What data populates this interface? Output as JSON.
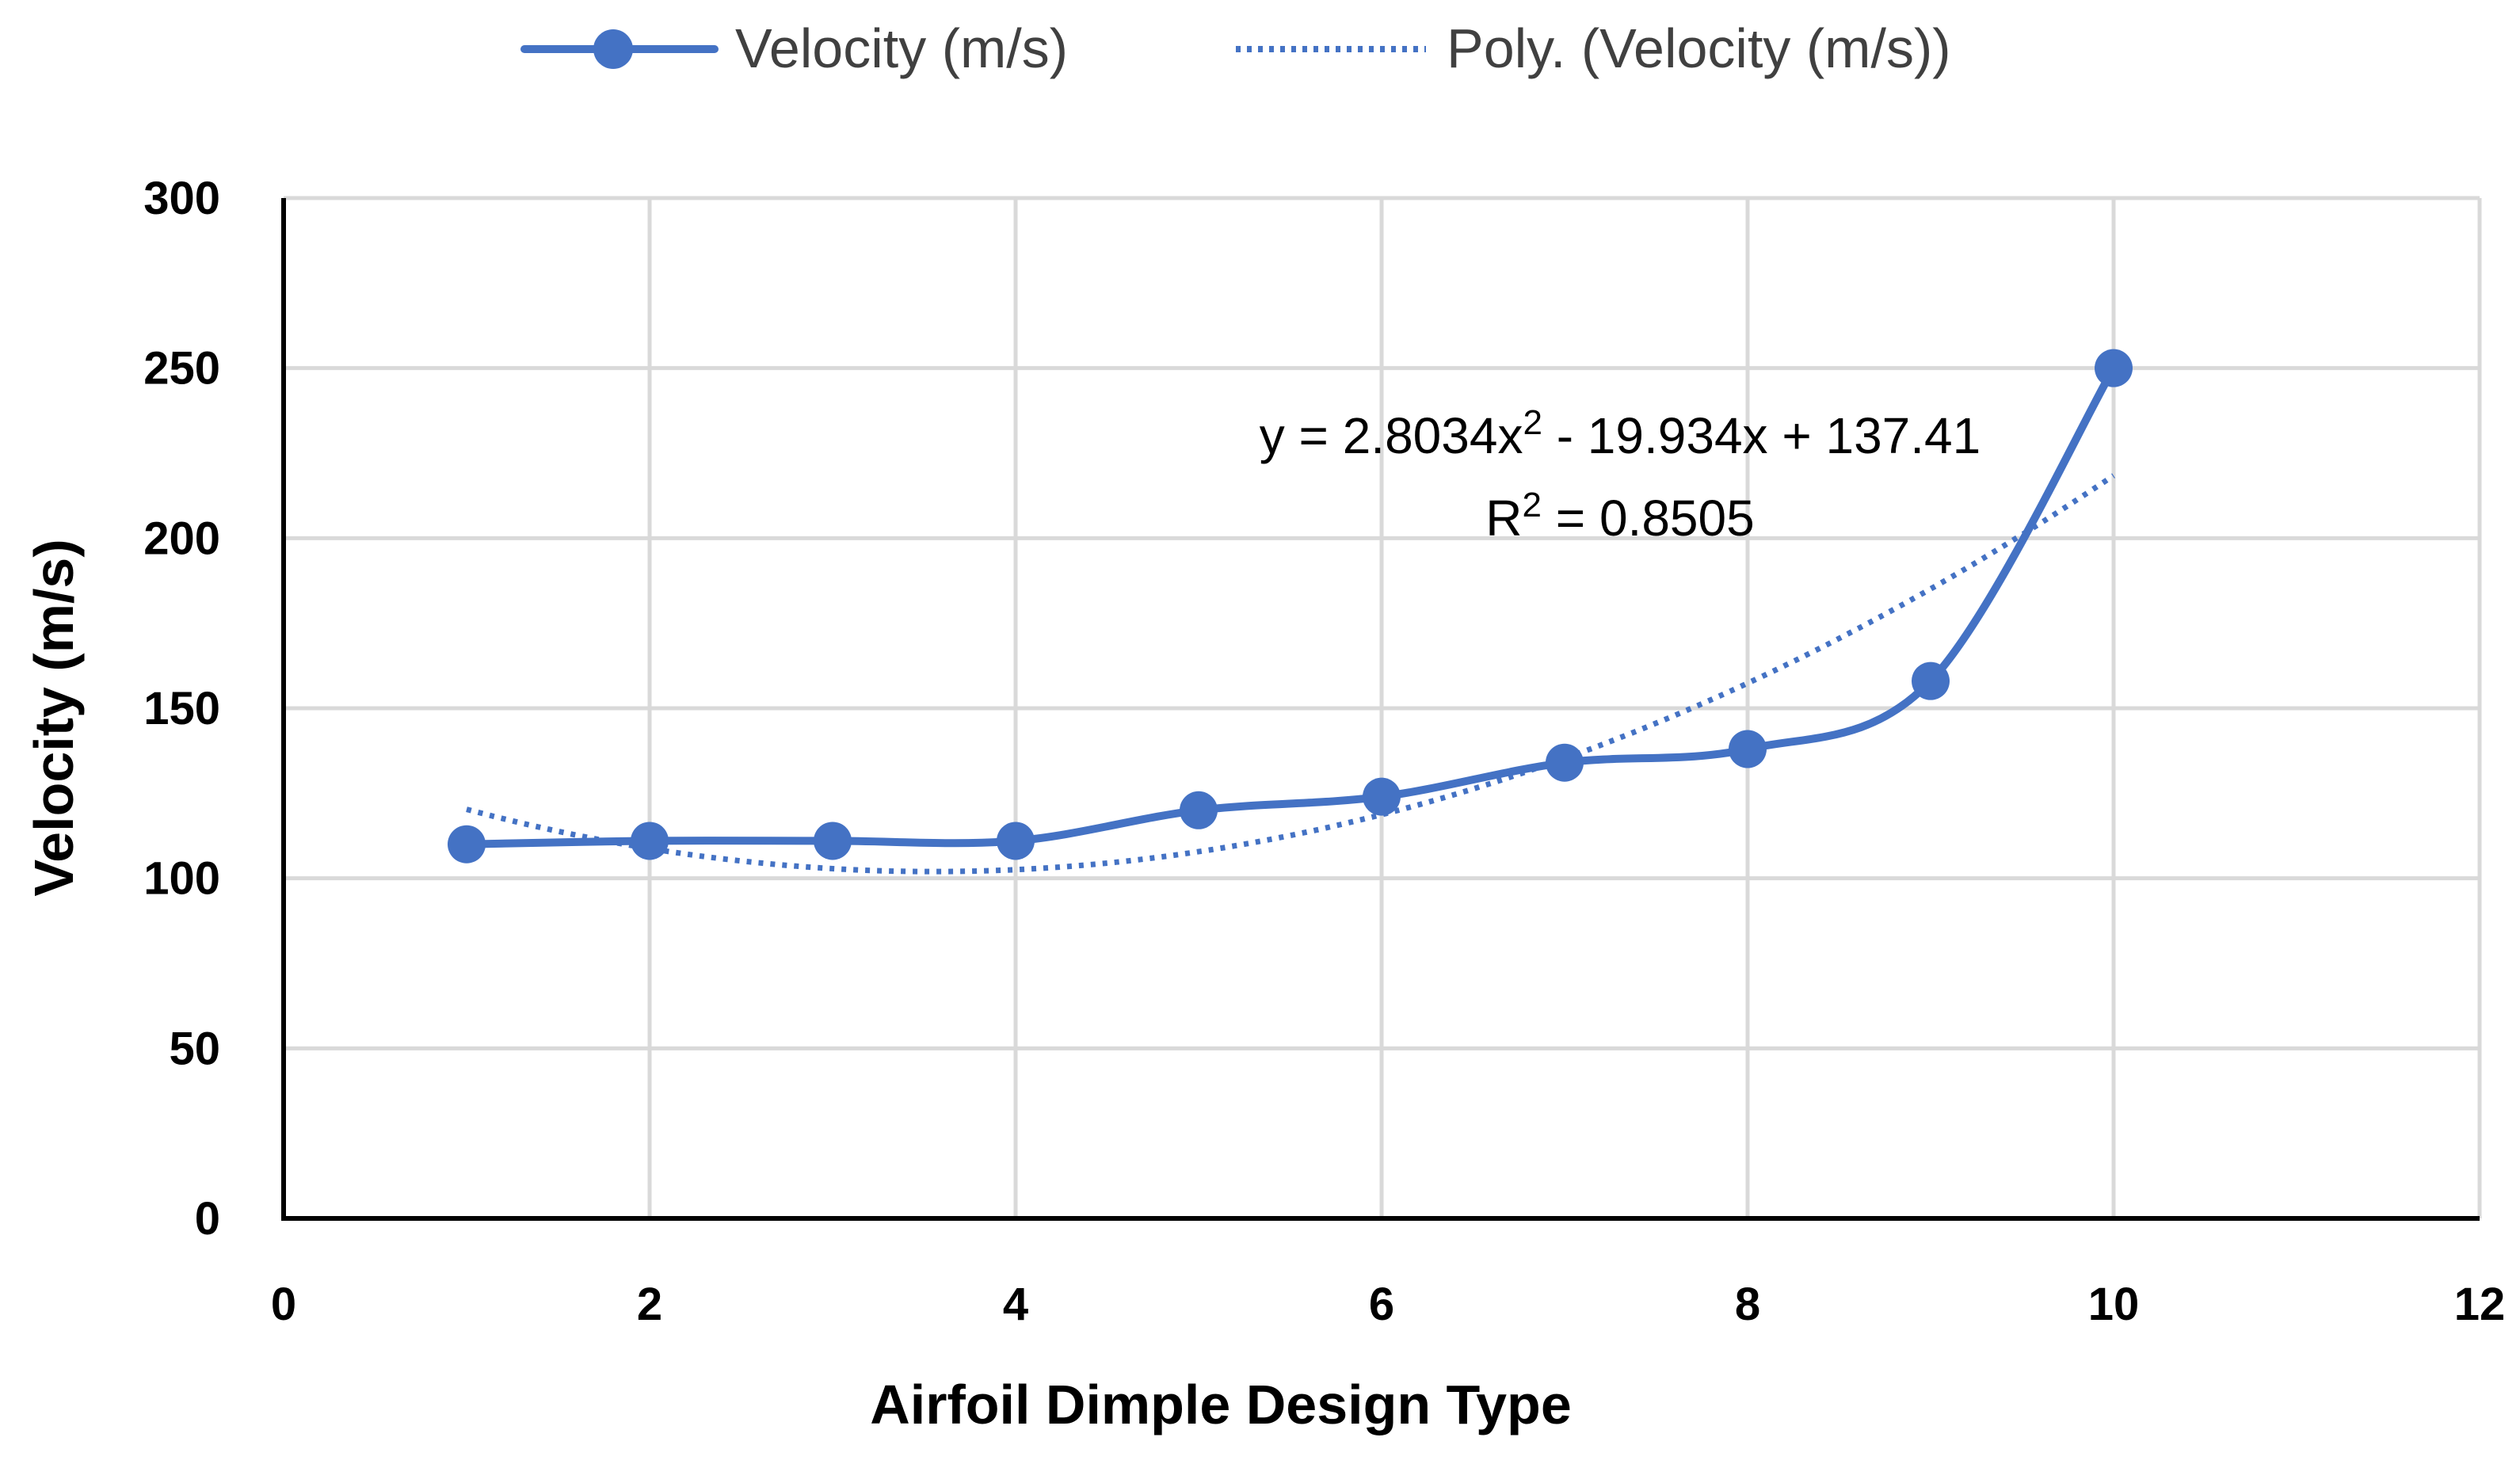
{
  "chart_data": {
    "type": "line",
    "title": "",
    "xlabel": "Airfoil Dimple Design Type",
    "ylabel": "Velocity (m/s)",
    "xlim": [
      0,
      12
    ],
    "ylim": [
      0,
      300
    ],
    "x_ticks": [
      0,
      2,
      4,
      6,
      8,
      10,
      12
    ],
    "y_ticks": [
      0,
      50,
      100,
      150,
      200,
      250,
      300
    ],
    "grid": true,
    "legend_position": "top-center",
    "series": [
      {
        "name": "Velocity (m/s)",
        "style": "solid-smooth-with-markers",
        "color": "#4472C4",
        "x": [
          1,
          2,
          3,
          4,
          5,
          6,
          7,
          8,
          9,
          10
        ],
        "values": [
          110,
          111,
          111,
          111,
          120,
          124,
          134,
          138,
          158,
          250
        ]
      },
      {
        "name": "Poly. (Velocity (m/s))",
        "style": "dotted-trendline",
        "color": "#4472C4",
        "fit": {
          "order": 2,
          "a": 2.8034,
          "b": -19.934,
          "c": 137.41
        },
        "x_range": [
          1,
          10
        ]
      }
    ],
    "annotations": {
      "equation": {
        "prefix": "y = 2.8034x",
        "sup": "2",
        "suffix": " - 19.934x + 137.41"
      },
      "r_squared": {
        "prefix": "R",
        "sup": "2",
        "suffix": " = 0.8505"
      }
    }
  }
}
